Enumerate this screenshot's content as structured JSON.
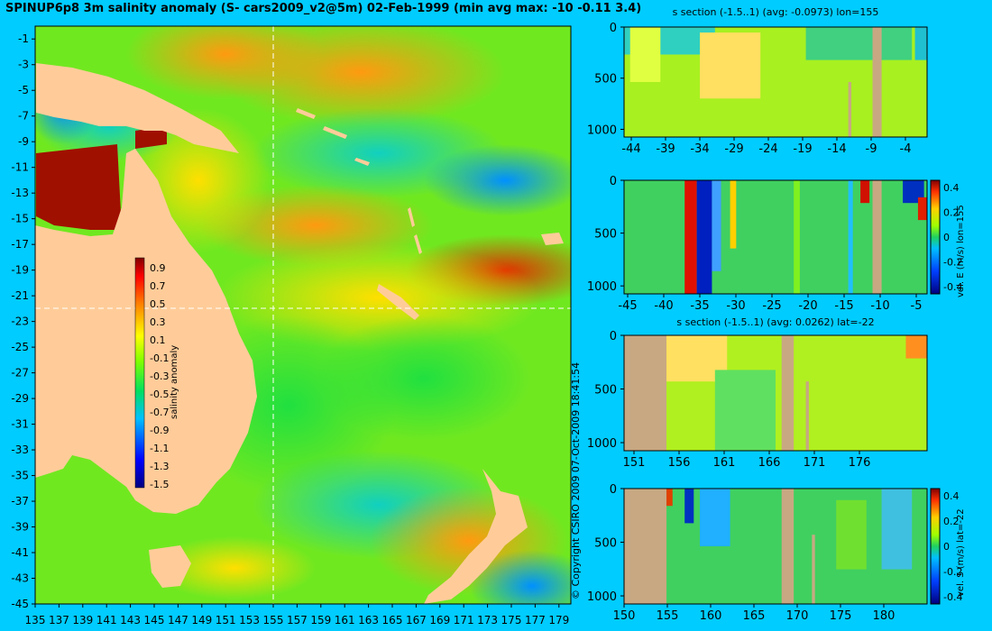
{
  "title": "SPINUP6p8 3m salinity anomaly (S- cars2009_v2@5m) 02-Feb-1999 (min avg max: -10 -0.11 3.4)",
  "copyright": "© Copyright CSIRO 2009   07-Oct-2009 18:41:54",
  "chart_data": [
    {
      "type": "heatmap",
      "name": "salinity-map",
      "x_ticks": [
        "135",
        "137",
        "139",
        "141",
        "143",
        "145",
        "147",
        "149",
        "151",
        "153",
        "155",
        "157",
        "159",
        "161",
        "163",
        "165",
        "167",
        "169",
        "171",
        "173",
        "175",
        "177",
        "179"
      ],
      "y_ticks": [
        "-1",
        "-3",
        "-5",
        "-7",
        "-9",
        "-11",
        "-13",
        "-15",
        "-17",
        "-19",
        "-21",
        "-23",
        "-25",
        "-27",
        "-29",
        "-31",
        "-33",
        "-35",
        "-37",
        "-39",
        "-41",
        "-43",
        "-45"
      ],
      "xlim": [
        135,
        180
      ],
      "ylim": [
        -45,
        0
      ],
      "section_lon": 155,
      "section_lat": -22,
      "colorbar": {
        "label": "salinity anomaly",
        "ticks": [
          "0.9",
          "0.7",
          "0.5",
          "0.3",
          "0.1",
          "-0.1",
          "-0.3",
          "-0.5",
          "-0.7",
          "-0.9",
          "-1.1",
          "-1.3",
          "-1.5"
        ],
        "range": [
          -1.6,
          1.0
        ]
      }
    },
    {
      "type": "heatmap",
      "name": "s-section-lon",
      "title": "s section (-1.5..1) (avg: -0.0973) lon=155",
      "x_ticks": [
        "-44",
        "-39",
        "-34",
        "-29",
        "-24",
        "-19",
        "-14",
        "-9",
        "-4"
      ],
      "y_ticks": [
        "0",
        "500",
        "1000"
      ]
    },
    {
      "type": "heatmap",
      "name": "velE-section-lon",
      "x_ticks": [
        "-45",
        "-40",
        "-35",
        "-30",
        "-25",
        "-20",
        "-15",
        "-10",
        "-5"
      ],
      "y_ticks": [
        "0",
        "500",
        "1000"
      ],
      "colorbar": {
        "label": "vel. E (m/s) lon=155",
        "ticks": [
          "0.4",
          "0.2",
          "0",
          "-0.2",
          "-0.4"
        ]
      }
    },
    {
      "type": "heatmap",
      "name": "s-section-lat",
      "title": "s section (-1.5..1) (avg: 0.0262) lat=-22",
      "x_ticks": [
        "151",
        "156",
        "161",
        "166",
        "171",
        "176"
      ],
      "y_ticks": [
        "0",
        "500",
        "1000"
      ]
    },
    {
      "type": "heatmap",
      "name": "velS-section-lat",
      "x_ticks": [
        "150",
        "155",
        "160",
        "165",
        "170",
        "175",
        "180"
      ],
      "y_ticks": [
        "0",
        "500",
        "1000"
      ],
      "colorbar": {
        "label": "vel. S (m/s) lat=-22",
        "ticks": [
          "0.4",
          "0.2",
          "0",
          "-0.2",
          "-0.4"
        ]
      }
    }
  ]
}
